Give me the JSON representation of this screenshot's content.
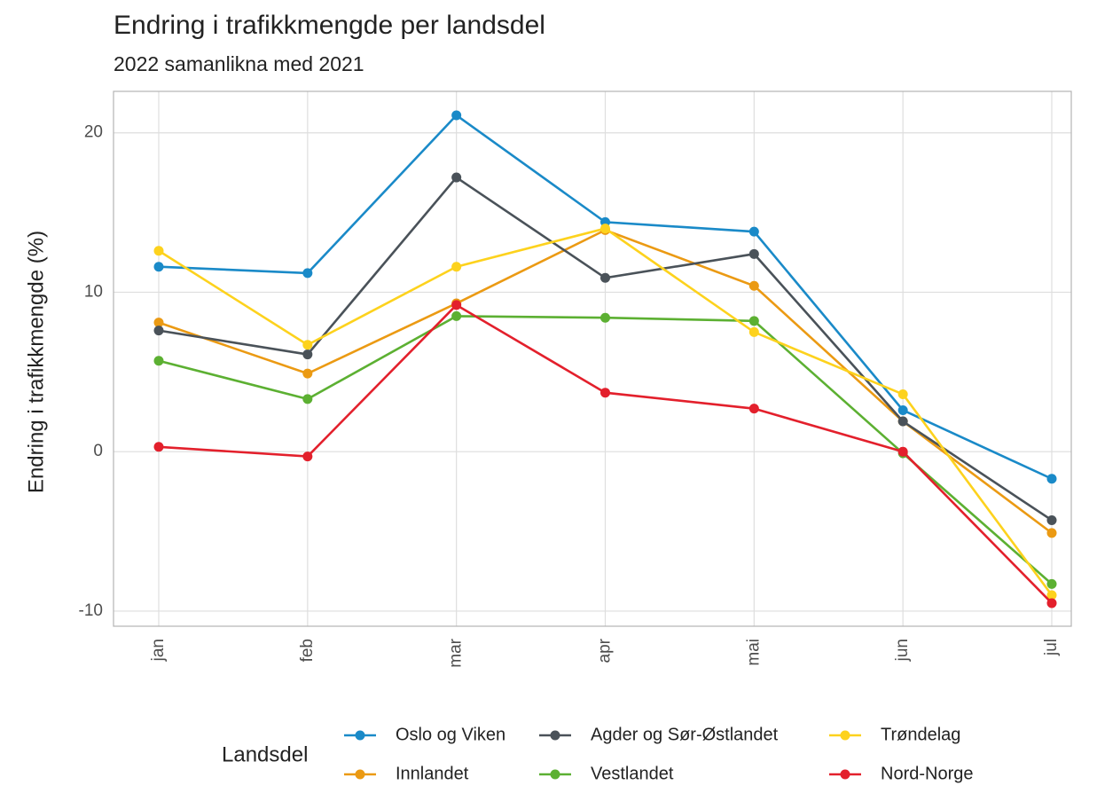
{
  "chart_data": {
    "type": "line",
    "title": "Endring i trafikkmengde per landsdel",
    "subtitle": "2022 samanlikna med 2021",
    "ylabel": "Endring i trafikkmengde (%)",
    "legend_title": "Landsdel",
    "legend_position": "bottom",
    "grid": true,
    "categories": [
      "jan",
      "feb",
      "mar",
      "apr",
      "mai",
      "jun",
      "jul"
    ],
    "ylim": [
      -10.95,
      22.6
    ],
    "yticks": [
      -10,
      0,
      10,
      20
    ],
    "series": [
      {
        "name": "Oslo og Viken",
        "color": "#1a8ac8",
        "values": [
          11.6,
          11.2,
          21.1,
          14.4,
          13.8,
          2.6,
          -1.7
        ]
      },
      {
        "name": "Innlandet",
        "color": "#eb9a13",
        "values": [
          8.1,
          4.9,
          9.3,
          13.9,
          10.4,
          1.9,
          -5.1
        ]
      },
      {
        "name": "Agder og Sør-Østlandet",
        "color": "#4a5259",
        "values": [
          7.6,
          6.1,
          17.2,
          10.9,
          12.4,
          1.9,
          -4.3
        ]
      },
      {
        "name": "Vestlandet",
        "color": "#5cb032",
        "values": [
          5.7,
          3.3,
          8.5,
          8.4,
          8.2,
          -0.1,
          -8.3
        ]
      },
      {
        "name": "Trøndelag",
        "color": "#fdd21d",
        "values": [
          12.6,
          6.7,
          11.6,
          14.0,
          7.5,
          3.6,
          -9.0
        ]
      },
      {
        "name": "Nord-Norge",
        "color": "#e3202c",
        "values": [
          0.3,
          -0.3,
          9.2,
          3.7,
          2.7,
          0.0,
          -9.5
        ]
      }
    ]
  }
}
